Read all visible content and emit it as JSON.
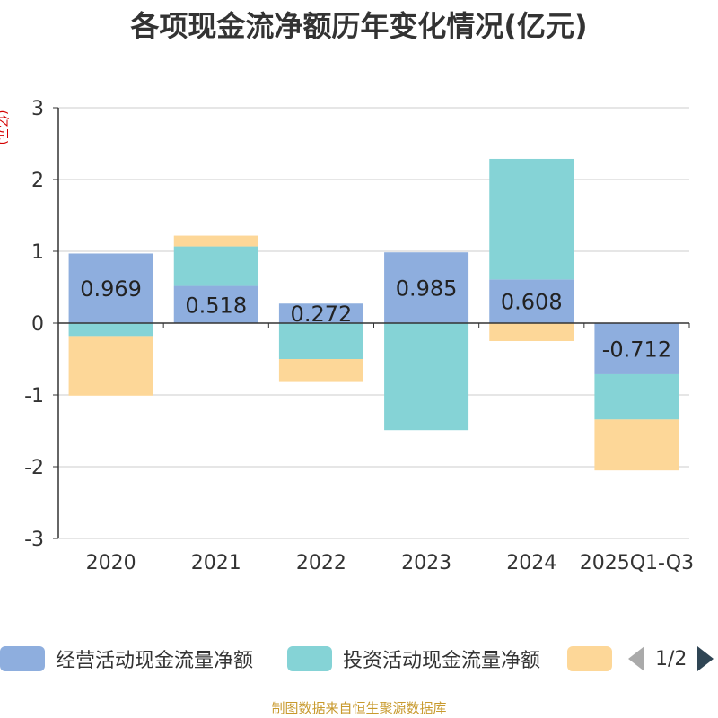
{
  "chart_data": {
    "type": "bar",
    "stacked": true,
    "title": "各项现金流净额历年变化情况(亿元)",
    "ylabel": "(亿元)",
    "ylim": [
      -3,
      3
    ],
    "yticks": [
      3,
      2,
      1,
      0,
      -1,
      -2,
      -3
    ],
    "categories": [
      "2020",
      "2021",
      "2022",
      "2023",
      "2024",
      "2025Q1-Q3"
    ],
    "series": [
      {
        "name": "经营活动现金流量净额",
        "color": "#8eaede",
        "values": [
          0.969,
          0.518,
          0.272,
          0.985,
          0.608,
          -0.712
        ]
      },
      {
        "name": "投资活动现金流量净额",
        "color": "#85d3d6",
        "values": [
          -0.18,
          0.55,
          -0.5,
          -1.49,
          1.68,
          -0.63
        ]
      },
      {
        "name": "",
        "color": "#fdd798",
        "values": [
          -0.83,
          0.15,
          -0.32,
          0,
          -0.25,
          -0.71
        ]
      }
    ],
    "data_labels": [
      "0.969",
      "0.518",
      "0.272",
      "0.985",
      "0.608",
      "-0.712"
    ],
    "legend_position": "bottom"
  },
  "legend": {
    "pager_text": "1/2"
  },
  "footer": "制图数据来自恒生聚源数据库"
}
